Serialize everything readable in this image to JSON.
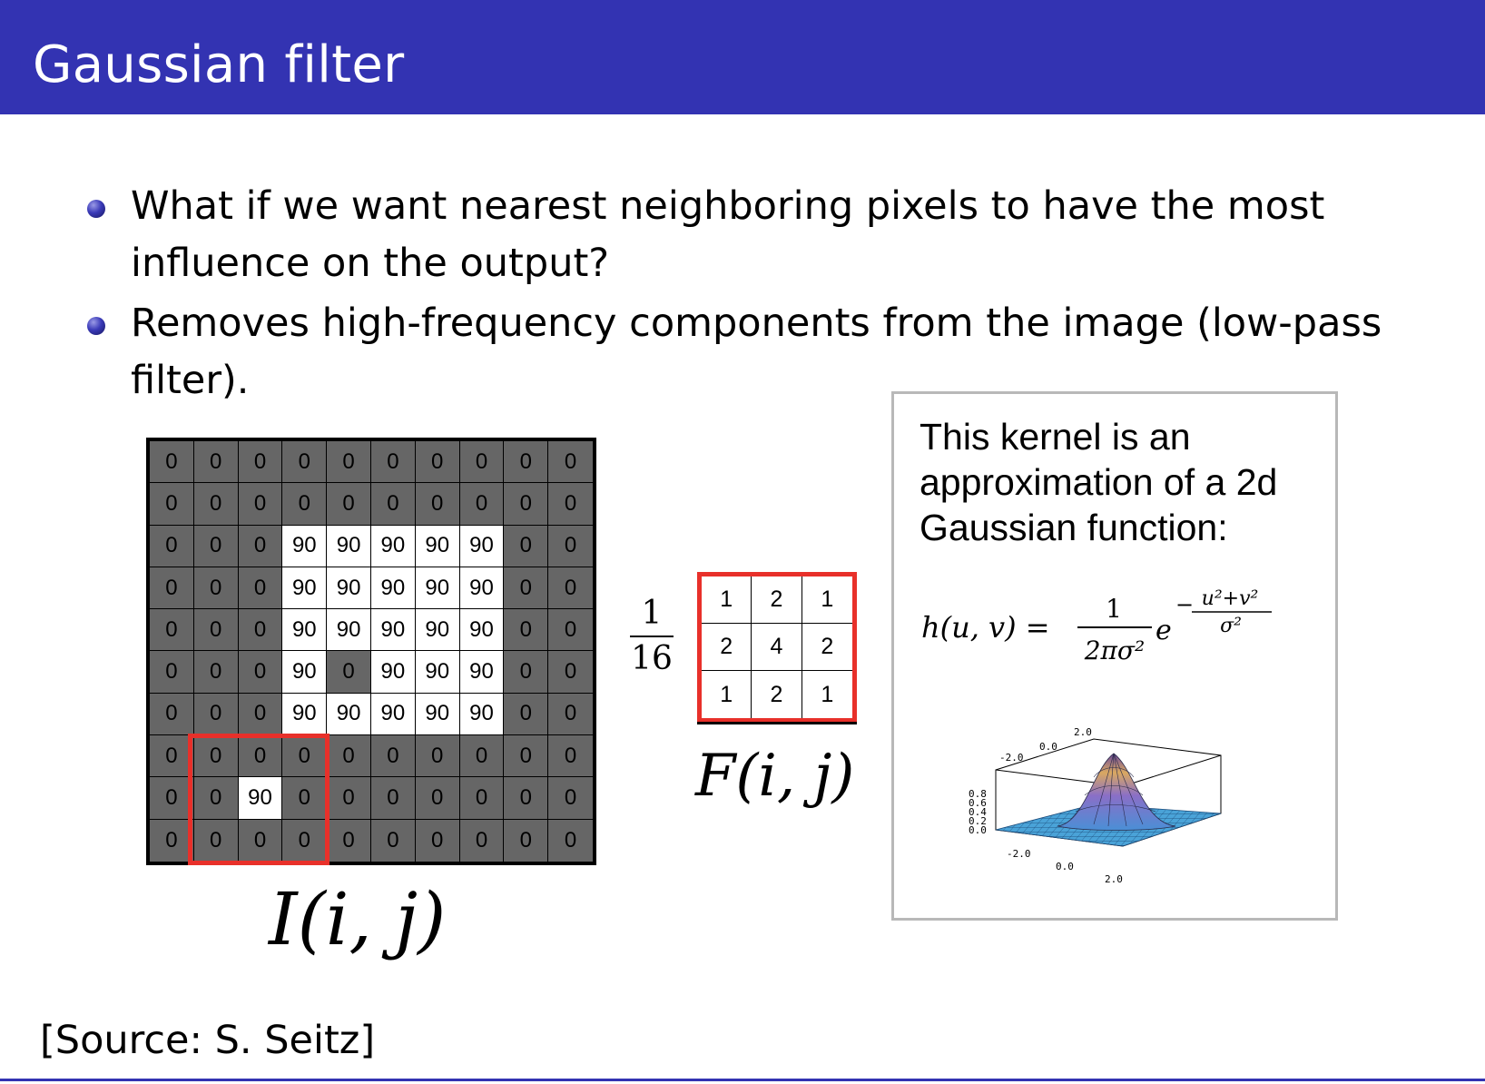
{
  "slide": {
    "title": "Gaussian filter",
    "bullets": [
      "What if we want nearest neighboring pixels to have the most influence on the output?",
      "Removes high-frequency components from the image (low-pass filter)."
    ],
    "source": "[Source:  S. Seitz]"
  },
  "image_grid": {
    "label": "I(i, j)",
    "rows": [
      [
        0,
        0,
        0,
        0,
        0,
        0,
        0,
        0,
        0,
        0
      ],
      [
        0,
        0,
        0,
        0,
        0,
        0,
        0,
        0,
        0,
        0
      ],
      [
        0,
        0,
        0,
        90,
        90,
        90,
        90,
        90,
        0,
        0
      ],
      [
        0,
        0,
        0,
        90,
        90,
        90,
        90,
        90,
        0,
        0
      ],
      [
        0,
        0,
        0,
        90,
        90,
        90,
        90,
        90,
        0,
        0
      ],
      [
        0,
        0,
        0,
        90,
        0,
        90,
        90,
        90,
        0,
        0
      ],
      [
        0,
        0,
        0,
        90,
        90,
        90,
        90,
        90,
        0,
        0
      ],
      [
        0,
        0,
        0,
        0,
        0,
        0,
        0,
        0,
        0,
        0
      ],
      [
        0,
        0,
        90,
        0,
        0,
        0,
        0,
        0,
        0,
        0
      ],
      [
        0,
        0,
        0,
        0,
        0,
        0,
        0,
        0,
        0,
        0
      ]
    ]
  },
  "kernel": {
    "label": "F(i, j)",
    "scale_numerator": "1",
    "scale_denominator": "16",
    "rows": [
      [
        1,
        2,
        1
      ],
      [
        2,
        4,
        2
      ],
      [
        1,
        2,
        1
      ]
    ]
  },
  "info_box": {
    "text": "This kernel is an approximation of a 2d Gaussian function:",
    "formula_lhs": "h(u, v) =",
    "formula_num": "1",
    "formula_den": "2πσ²",
    "formula_base": "e",
    "formula_exp_sign": "−",
    "formula_exp_num": "u²+v²",
    "formula_exp_den": "σ²",
    "plot_axis_labels": {
      "x_ticks": [
        "-2.0",
        "0.0",
        "2.0"
      ],
      "y_ticks": [
        "-2.0",
        "0.0",
        "2.0"
      ],
      "z_ticks": [
        "0.8",
        "0.6",
        "0.4",
        "0.2",
        "0.0"
      ]
    }
  },
  "colors": {
    "header": "#3333b2",
    "highlight": "#e8302a",
    "dark_cell": "#666666",
    "light_cell": "#ffffff"
  }
}
